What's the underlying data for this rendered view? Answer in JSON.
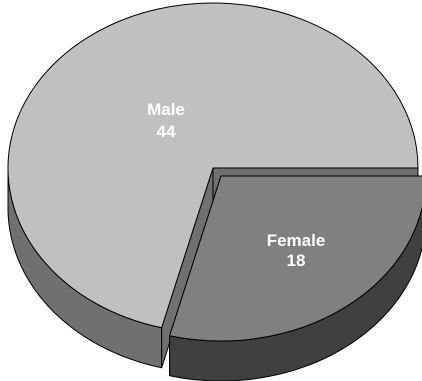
{
  "chart_data": {
    "type": "pie",
    "style": "3d-exploded",
    "slices": [
      {
        "label": "Male",
        "value": 44,
        "color": "#c0c0c0",
        "side_color": "#707070"
      },
      {
        "label": "Female",
        "value": 18,
        "color": "#808080",
        "side_color": "#404040"
      }
    ],
    "outline_color": "#000000"
  }
}
